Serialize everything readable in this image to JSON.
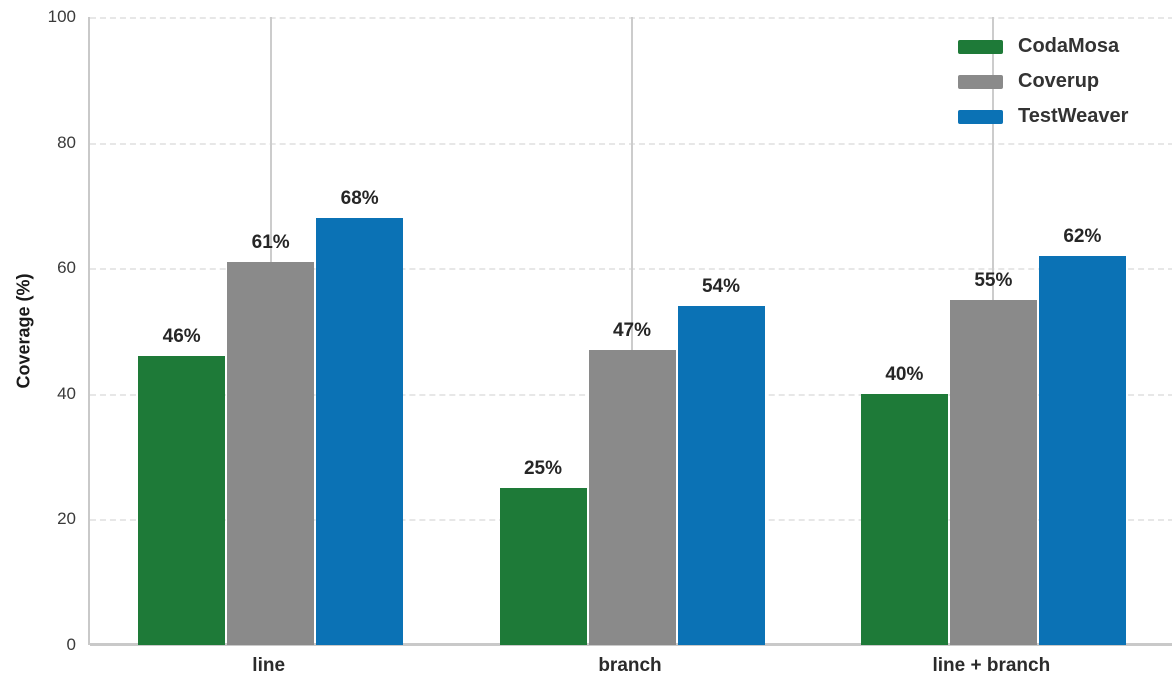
{
  "chart_data": {
    "type": "bar",
    "title": "",
    "xlabel": "",
    "ylabel": "Coverage (%)",
    "categories": [
      "line",
      "branch",
      "line + branch"
    ],
    "series": [
      {
        "name": "CodaMosa",
        "color": "#1e7a38",
        "values": [
          46,
          25,
          40
        ],
        "value_labels": [
          "46%",
          "25%",
          "40%"
        ]
      },
      {
        "name": "Coverup",
        "color": "#8a8a8a",
        "values": [
          61,
          47,
          55
        ],
        "value_labels": [
          "61%",
          "47%",
          "55%"
        ]
      },
      {
        "name": "TestWeaver",
        "color": "#0b72b5",
        "values": [
          68,
          54,
          62
        ],
        "value_labels": [
          "68%",
          "54%",
          "62%"
        ]
      }
    ],
    "ylim": [
      0,
      100
    ],
    "yticks": [
      "0",
      "20",
      "40",
      "60",
      "80",
      "100"
    ],
    "grid": {
      "horizontal": "dashed",
      "vertical": "solid line at each category center"
    },
    "legend": {
      "position": "top-right",
      "entries": [
        "CodaMosa",
        "Coverup",
        "TestWeaver"
      ]
    }
  },
  "colors": {
    "background": "#ffffff",
    "axis_line": "#c9c9c9",
    "grid_horizontal": "#e7e7e7",
    "grid_vertical": "#cccccc",
    "tick_text": "#3a3a3a",
    "value_label_text": "#262626",
    "legend_text": "#333333"
  }
}
